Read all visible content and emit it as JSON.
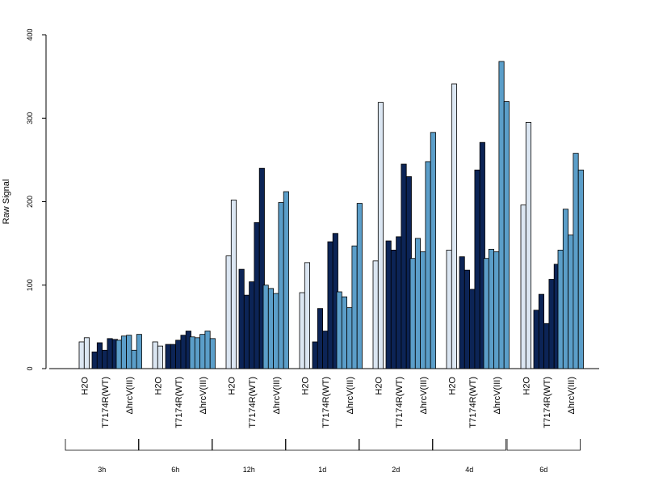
{
  "chart_data": {
    "type": "bar",
    "ylabel": "Raw Signal",
    "xlabel": "",
    "ylim": [
      0,
      400
    ],
    "yticks": [
      0,
      100,
      200,
      300,
      400
    ],
    "conditions": [
      {
        "name": "H2O",
        "color": "#dbe6f2"
      },
      {
        "name": "T7174R(WT)",
        "color": "#0c2456"
      },
      {
        "name": "ΔhrcV(III)",
        "color": "#5b9ec9"
      }
    ],
    "groups": [
      {
        "time": "3h",
        "values": [
          [
            32,
            37
          ],
          [
            20,
            31,
            22,
            36,
            35
          ],
          [
            34,
            39,
            40,
            22,
            41
          ]
        ]
      },
      {
        "time": "6h",
        "values": [
          [
            32,
            27
          ],
          [
            29,
            29,
            34,
            40,
            45
          ],
          [
            38,
            37,
            41,
            45,
            36
          ]
        ]
      },
      {
        "time": "12h",
        "values": [
          [
            135,
            202
          ],
          [
            119,
            88,
            104,
            175,
            240
          ],
          [
            100,
            96,
            90,
            199,
            212
          ]
        ]
      },
      {
        "time": "1d",
        "values": [
          [
            91,
            127
          ],
          [
            32,
            72,
            45,
            152,
            162
          ],
          [
            92,
            86,
            73,
            147,
            198
          ]
        ]
      },
      {
        "time": "2d",
        "values": [
          [
            129,
            319
          ],
          [
            153,
            142,
            158,
            245,
            230
          ],
          [
            132,
            156,
            140,
            248,
            283
          ]
        ]
      },
      {
        "time": "4d",
        "values": [
          [
            142,
            341
          ],
          [
            134,
            118,
            95,
            238,
            271
          ],
          [
            132,
            143,
            140,
            368,
            320
          ]
        ]
      },
      {
        "time": "6d",
        "values": [
          [
            196,
            295
          ],
          [
            70,
            89,
            54,
            107,
            125
          ],
          [
            142,
            191,
            160,
            258,
            238
          ]
        ]
      }
    ]
  }
}
